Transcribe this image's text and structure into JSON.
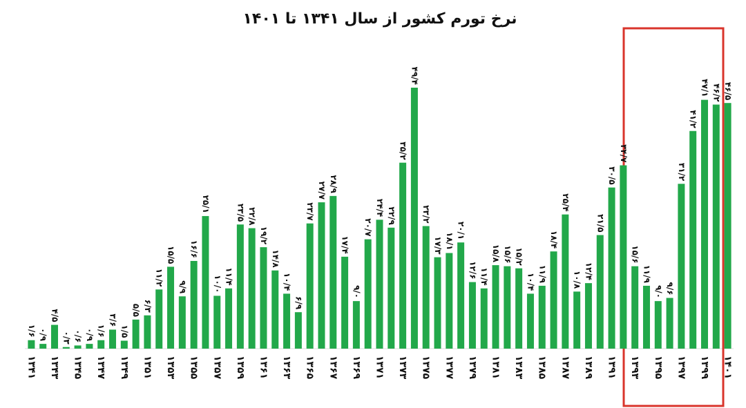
{
  "chart_data": {
    "type": "bar",
    "title": "نرخ تورم کشور از سال ۱۳۴۱ تا ۱۴۰۱",
    "color": "#22a84a",
    "categories": [
      "۱۳۴۱",
      null,
      "۱۳۴۳",
      null,
      "۱۳۴۵",
      null,
      "۱۳۴۷",
      null,
      "۱۳۴۹",
      null,
      "۱۳۵۱",
      null,
      "۱۳۵۳",
      null,
      "۱۳۵۵",
      null,
      "۱۳۵۷",
      null,
      "۱۳۵۹",
      null,
      "۱۳۶۱",
      null,
      "۱۳۶۳",
      null,
      "۱۳۶۵",
      null,
      "۱۳۶۷",
      null,
      "۱۳۶۹",
      null,
      "۱۳۷۱",
      null,
      "۱۳۷۳",
      null,
      "۱۳۷۵",
      null,
      "۱۳۷۷",
      null,
      "۱۳۷۹",
      null,
      "۱۳۸۱",
      null,
      "۱۳۸۳",
      null,
      "۱۳۸۵",
      null,
      "۱۳۸۷",
      null,
      "۱۳۸۹",
      null,
      "۱۳۹۱",
      null,
      "۱۳۹۳",
      null,
      "۱۳۹۵",
      null,
      "۱۳۹۷",
      null,
      "۱۳۹۹",
      null,
      "۱۴۰۱"
    ],
    "values": [
      1.6,
      0.9,
      4.5,
      0.3,
      0.6,
      0.9,
      1.6,
      3.6,
      1.5,
      5.5,
      6.3,
      11.2,
      15.5,
      9.9,
      16.6,
      25.1,
      10.0,
      11.4,
      23.5,
      22.8,
      19.2,
      14.8,
      10.4,
      6.9,
      23.7,
      27.7,
      28.9,
      17.4,
      9.0,
      20.7,
      24.4,
      22.9,
      35.2,
      49.4,
      23.2,
      17.3,
      18.1,
      20.1,
      12.6,
      11.4,
      15.8,
      15.6,
      15.2,
      10.4,
      11.9,
      18.4,
      25.4,
      10.8,
      12.4,
      21.5,
      30.5,
      34.7,
      15.6,
      11.9,
      9.0,
      9.6,
      31.2,
      41.2,
      47.1,
      46.2,
      46.5
    ],
    "value_labels": [
      "۱/۶",
      "۰/۹",
      "۴/۵",
      "۰/۳",
      "۰/۶",
      "۰/۹",
      "۱/۶",
      "۳/۶",
      "۱/۵",
      "۵/۵",
      "۶/۳",
      "۱۱/۲",
      "۱۵/۵",
      "۹/۹",
      "۱۶/۶",
      "۲۵/۱",
      "۱۰/۰",
      "۱۱/۴",
      "۲۳/۵",
      "۲۲/۸",
      "۱۹/۲",
      "۱۴/۸",
      "۱۰/۴",
      "۶/۹",
      "۲۳/۷",
      "۲۷/۷",
      "۲۸/۹",
      "۱۷/۴",
      "۹/۰",
      "۲۰/۷",
      "۲۴/۴",
      "۲۲/۹",
      "۳۵/۲",
      "۴۹/۴",
      "۲۳/۲",
      "۱۷/۳",
      "۱۸/۱",
      "۲۰/۱",
      "۱۲/۶",
      "۱۱/۴",
      "۱۵/۸",
      "۱۵/۶",
      "۱۵/۲",
      "۱۰/۴",
      "۱۱/۹",
      "۱۸/۴",
      "۲۵/۴",
      "۱۰/۸",
      "۱۲/۴",
      "۲۱/۵",
      "۳۰/۵",
      "۳۴/۷",
      "۱۵/۶",
      "۱۱/۹",
      "۹/۰",
      "۹/۶",
      "۳۱/۲",
      "۴۱/۲",
      "۴۷/۱",
      "۴۶/۲",
      "۴۶/۵"
    ]
  }
}
